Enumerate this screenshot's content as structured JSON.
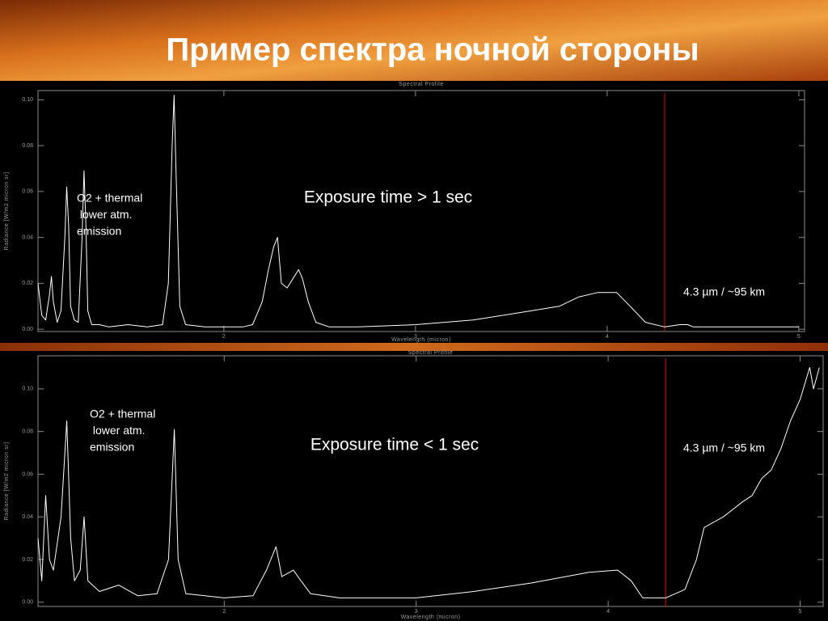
{
  "title": "Пример спектра ночной стороны",
  "chart_data": [
    {
      "type": "line",
      "title": "Spectral Profile",
      "x_label": "Wavelength (micron)",
      "y_label": "Radiance [W/m2 micron sr]",
      "color": "#ffffff",
      "x": [
        1.03,
        1.05,
        1.07,
        1.09,
        1.1,
        1.11,
        1.13,
        1.15,
        1.17,
        1.18,
        1.19,
        1.2,
        1.22,
        1.24,
        1.26,
        1.27,
        1.28,
        1.29,
        1.31,
        1.35,
        1.4,
        1.5,
        1.6,
        1.68,
        1.71,
        1.73,
        1.74,
        1.75,
        1.77,
        1.8,
        1.9,
        2.0,
        2.1,
        2.15,
        2.2,
        2.23,
        2.26,
        2.28,
        2.29,
        2.3,
        2.33,
        2.36,
        2.39,
        2.41,
        2.44,
        2.48,
        2.55,
        2.7,
        3.0,
        3.3,
        3.6,
        3.75,
        3.85,
        3.95,
        4.05,
        4.12,
        4.2,
        4.3,
        4.38,
        4.42,
        4.45,
        4.6,
        4.8,
        5.0
      ],
      "values": [
        0.02,
        0.006,
        0.004,
        0.015,
        0.023,
        0.012,
        0.003,
        0.008,
        0.04,
        0.062,
        0.045,
        0.01,
        0.004,
        0.003,
        0.04,
        0.069,
        0.045,
        0.008,
        0.002,
        0.002,
        0.001,
        0.002,
        0.001,
        0.002,
        0.02,
        0.08,
        0.102,
        0.07,
        0.01,
        0.002,
        0.001,
        0.001,
        0.001,
        0.002,
        0.012,
        0.025,
        0.036,
        0.04,
        0.03,
        0.02,
        0.018,
        0.022,
        0.026,
        0.022,
        0.012,
        0.003,
        0.001,
        0.001,
        0.002,
        0.004,
        0.008,
        0.01,
        0.014,
        0.016,
        0.016,
        0.01,
        0.003,
        0.001,
        0.002,
        0.002,
        0.001,
        0.001,
        0.001,
        0.001
      ],
      "xlim": [
        1.03,
        5.03
      ],
      "xticks": [
        2,
        3,
        4,
        5
      ],
      "ylim": [
        -0.001,
        0.104
      ],
      "yticks": [
        {
          "value": 0,
          "label": "0.00"
        },
        {
          "value": 0.02,
          "label": "0.02"
        },
        {
          "value": 0.04,
          "label": "0.04"
        },
        {
          "value": 0.06,
          "label": "0.06"
        },
        {
          "value": 0.08,
          "label": "0.08"
        },
        {
          "value": 0.1,
          "label": "0.10"
        }
      ],
      "marker_x": 4.3,
      "marker_color": "#c00000",
      "band_label": [
        "O2 + thermal",
        " lower atm.",
        "emission"
      ],
      "exposure_label": "Exposure time > 1 sec",
      "marker_label": "4.3 µm / ~95 km"
    },
    {
      "type": "line",
      "title": "Spectral Profile",
      "x_label": "Wavelength (micron)",
      "y_label": "Radiance [W/m2 micron sr]",
      "color": "#ffffff",
      "x": [
        1.03,
        1.05,
        1.07,
        1.09,
        1.11,
        1.15,
        1.18,
        1.2,
        1.22,
        1.25,
        1.27,
        1.29,
        1.35,
        1.45,
        1.55,
        1.65,
        1.71,
        1.74,
        1.76,
        1.8,
        1.9,
        2.0,
        2.15,
        2.22,
        2.27,
        2.3,
        2.36,
        2.4,
        2.45,
        2.6,
        3.0,
        3.3,
        3.6,
        3.9,
        4.05,
        4.12,
        4.18,
        4.3,
        4.4,
        4.46,
        4.5,
        4.6,
        4.7,
        4.75,
        4.8,
        4.85,
        4.9,
        4.95,
        5.0,
        5.05,
        5.07,
        5.1
      ],
      "values": [
        0.03,
        0.01,
        0.05,
        0.02,
        0.015,
        0.04,
        0.085,
        0.03,
        0.01,
        0.015,
        0.04,
        0.01,
        0.005,
        0.008,
        0.003,
        0.004,
        0.02,
        0.081,
        0.02,
        0.004,
        0.003,
        0.002,
        0.003,
        0.015,
        0.026,
        0.012,
        0.015,
        0.01,
        0.004,
        0.002,
        0.002,
        0.005,
        0.009,
        0.014,
        0.015,
        0.01,
        0.002,
        0.002,
        0.006,
        0.02,
        0.035,
        0.04,
        0.047,
        0.05,
        0.058,
        0.062,
        0.072,
        0.085,
        0.095,
        0.11,
        0.1,
        0.11
      ],
      "xlim": [
        1.03,
        5.12
      ],
      "xticks": [
        2,
        3,
        4,
        5
      ],
      "ylim": [
        -0.002,
        0.1155
      ],
      "yticks": [
        {
          "value": 0,
          "label": "0.00"
        },
        {
          "value": 0.02,
          "label": "0.02"
        },
        {
          "value": 0.04,
          "label": "0.04"
        },
        {
          "value": 0.06,
          "label": "0.06"
        },
        {
          "value": 0.08,
          "label": "0.08"
        },
        {
          "value": 0.1,
          "label": "0.10"
        }
      ],
      "marker_x": 4.3,
      "marker_color": "#c00000",
      "band_label": [
        "O2 + thermal",
        " lower atm.",
        "emission"
      ],
      "exposure_label": "Exposure time < 1 sec",
      "marker_label": "4.3 µm / ~95 km"
    }
  ]
}
